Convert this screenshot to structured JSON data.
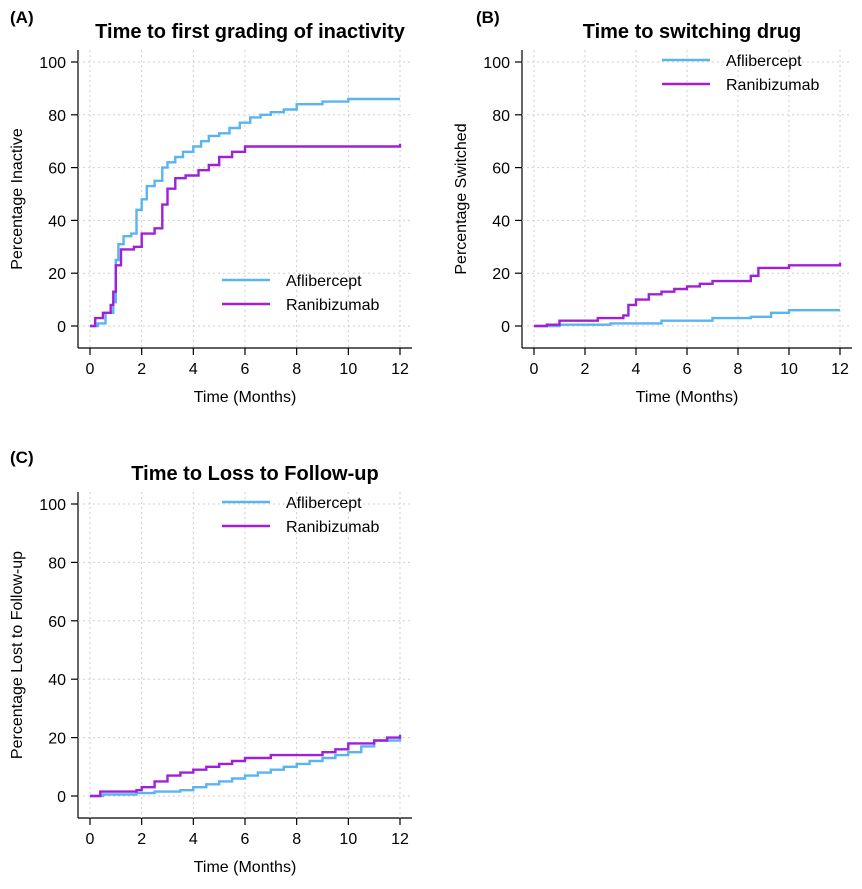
{
  "chart_data": [
    {
      "type": "line",
      "panel_label": "(A)",
      "title": "Time to first grading of inactivity",
      "xlabel": "Time (Months)",
      "ylabel": "Percentage Inactive",
      "xlim": [
        0,
        12
      ],
      "ylim": [
        0,
        100
      ],
      "x_ticks": [
        "0",
        "2",
        "4",
        "6",
        "8",
        "10",
        "12"
      ],
      "y_ticks": [
        "0",
        "20",
        "40",
        "60",
        "80",
        "100"
      ],
      "grid": true,
      "legend": "bottom-right",
      "series": [
        {
          "name": "Aflibercept",
          "color": "#5ab4f0",
          "x": [
            0,
            0.3,
            0.6,
            0.9,
            1.0,
            1.1,
            1.3,
            1.6,
            1.8,
            2.0,
            2.2,
            2.5,
            2.8,
            3.0,
            3.3,
            3.6,
            4.0,
            4.3,
            4.6,
            5.0,
            5.4,
            5.8,
            6.2,
            6.6,
            7.0,
            7.5,
            8.0,
            9.0,
            10.0,
            12.0
          ],
          "values": [
            0,
            1,
            5,
            9,
            25,
            31,
            34,
            35,
            44,
            48,
            53,
            55,
            60,
            62,
            64,
            66,
            68,
            70,
            72,
            73,
            75,
            77,
            79,
            80,
            81,
            82,
            84,
            85,
            86,
            86
          ]
        },
        {
          "name": "Ranibizumab",
          "color": "#a020d8",
          "x": [
            0,
            0.2,
            0.5,
            0.8,
            0.9,
            1.0,
            1.2,
            1.7,
            2.0,
            2.5,
            2.8,
            3.0,
            3.3,
            3.7,
            4.2,
            4.6,
            5.0,
            5.5,
            6.0,
            7.0,
            9.0,
            11.0,
            12.0
          ],
          "values": [
            0,
            3,
            5,
            8,
            13,
            23,
            29,
            30,
            35,
            37,
            46,
            52,
            56,
            57,
            59,
            61,
            64,
            66,
            68,
            68,
            68,
            68,
            69
          ]
        }
      ]
    },
    {
      "type": "line",
      "panel_label": "(B)",
      "title": "Time to switching drug",
      "xlabel": "Time (Months)",
      "ylabel": "Percentage Switched",
      "xlim": [
        0,
        12
      ],
      "ylim": [
        0,
        100
      ],
      "x_ticks": [
        "0",
        "2",
        "4",
        "6",
        "8",
        "10",
        "12"
      ],
      "y_ticks": [
        "0",
        "20",
        "40",
        "60",
        "80",
        "100"
      ],
      "grid": true,
      "legend": "top-right",
      "series": [
        {
          "name": "Aflibercept",
          "color": "#5ab4f0",
          "x": [
            0,
            1.0,
            3.0,
            5.0,
            7.0,
            8.5,
            9.3,
            10.0,
            12.0
          ],
          "values": [
            0,
            0.5,
            1,
            2,
            3,
            3.5,
            5,
            6,
            6
          ]
        },
        {
          "name": "Ranibizumab",
          "color": "#a020d8",
          "x": [
            0,
            0.5,
            1.0,
            2.5,
            3.5,
            3.7,
            4.0,
            4.5,
            5.0,
            5.5,
            6.0,
            6.5,
            7.0,
            8.0,
            8.5,
            8.8,
            10.0,
            11.5,
            12.0
          ],
          "values": [
            0,
            0.5,
            2,
            3,
            4,
            8,
            10,
            12,
            13,
            14,
            15,
            16,
            17,
            17,
            19,
            22,
            23,
            23,
            24
          ]
        }
      ]
    },
    {
      "type": "line",
      "panel_label": "(C)",
      "title": "Time to Loss to Follow-up",
      "xlabel": "Time (Months)",
      "ylabel": "Percentage Lost to Follow-up",
      "xlim": [
        0,
        12
      ],
      "ylim": [
        0,
        100
      ],
      "x_ticks": [
        "0",
        "2",
        "4",
        "6",
        "8",
        "10",
        "12"
      ],
      "y_ticks": [
        "0",
        "20",
        "40",
        "60",
        "80",
        "100"
      ],
      "grid": true,
      "legend": "top-right",
      "series": [
        {
          "name": "Aflibercept",
          "color": "#5ab4f0",
          "x": [
            0,
            0.5,
            1.8,
            2.5,
            3.5,
            4.0,
            4.5,
            5.0,
            5.5,
            6.0,
            6.5,
            7.0,
            7.5,
            8.0,
            8.5,
            9.0,
            9.5,
            10.0,
            10.5,
            11.0,
            12.0
          ],
          "values": [
            0,
            0.5,
            1,
            1.5,
            2,
            3,
            4,
            5,
            6,
            7,
            8,
            9,
            10,
            11,
            12,
            13,
            14,
            15,
            17,
            19,
            20
          ]
        },
        {
          "name": "Ranibizumab",
          "color": "#a020d8",
          "x": [
            0,
            0.4,
            1.8,
            2.0,
            2.5,
            3.0,
            3.5,
            4.0,
            4.5,
            5.0,
            5.5,
            6.0,
            7.0,
            8.0,
            9.0,
            9.5,
            10.0,
            11.0,
            11.5,
            12.0
          ],
          "values": [
            0,
            1.5,
            2,
            3,
            5,
            7,
            8,
            9,
            10,
            11,
            12,
            13,
            14,
            14,
            15,
            16,
            18,
            19,
            20,
            21
          ]
        }
      ]
    }
  ]
}
